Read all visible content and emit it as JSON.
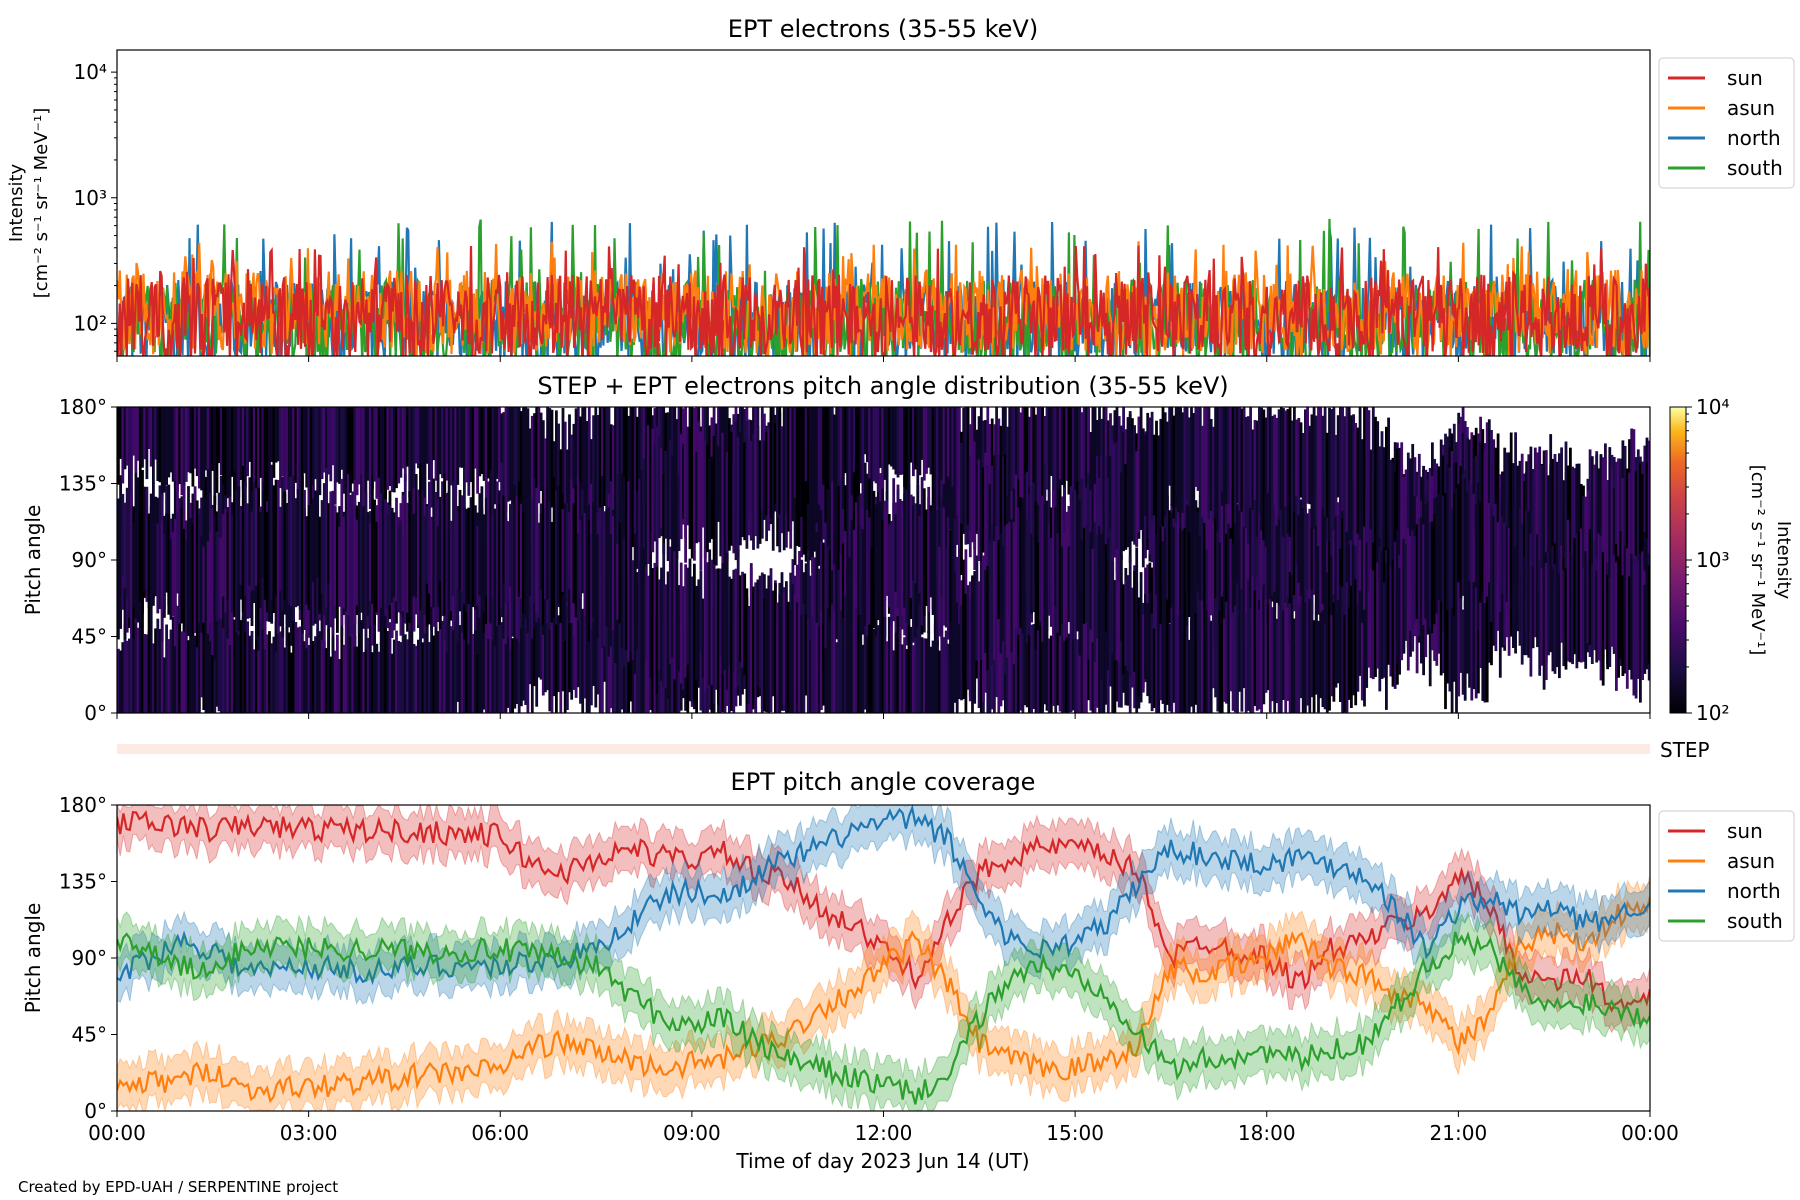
{
  "credit": "Created by EPD-UAH / SERPENTINE project",
  "colors": {
    "sun": "#d62728",
    "asun": "#ff7f0e",
    "north": "#1f77b4",
    "south": "#2ca02c"
  },
  "chart_data": [
    {
      "type": "line",
      "title": "EPT electrons (35-55 keV)",
      "ylabel_line1": "Intensity",
      "ylabel_line2": "[cm⁻² s⁻¹ sr⁻¹ MeV⁻¹]",
      "yscale": "log",
      "ylim": [
        55,
        15000
      ],
      "yticks": [
        "10²",
        "10³",
        "10⁴"
      ],
      "ytick_values": [
        100,
        1000,
        10000
      ],
      "xlim_hours": [
        0,
        24
      ],
      "legend": "upper-right outside",
      "series": [
        {
          "name": "sun",
          "color": "#d62728",
          "baseline": 110,
          "peak": 420
        },
        {
          "name": "asun",
          "color": "#ff7f0e",
          "baseline": 120,
          "peak": 450
        },
        {
          "name": "north",
          "color": "#1f77b4",
          "baseline": 100,
          "peak": 650
        },
        {
          "name": "south",
          "color": "#2ca02c",
          "baseline": 100,
          "peak": 680
        }
      ]
    },
    {
      "type": "heatmap",
      "title": "STEP + EPT electrons pitch angle distribution (35-55 keV)",
      "ylabel": "Pitch angle",
      "ylim": [
        0,
        180
      ],
      "yticks": [
        "0°",
        "45°",
        "90°",
        "135°",
        "180°"
      ],
      "colorbar": {
        "label_line1": "Intensity",
        "label_line2": "[cm⁻² s⁻¹ sr⁻¹ MeV⁻¹]",
        "scale": "log",
        "range": [
          100,
          10000
        ],
        "ticks": [
          "10²",
          "10³",
          "10⁴"
        ],
        "colormap": "inferno"
      },
      "step_label": "STEP",
      "xlim_hours": [
        0,
        24
      ]
    },
    {
      "type": "line",
      "title": "EPT pitch angle coverage",
      "ylabel": "Pitch angle",
      "ylim": [
        0,
        180
      ],
      "yticks": [
        "0°",
        "45°",
        "90°",
        "135°",
        "180°"
      ],
      "xlabel": "Time of day 2023 Jun 14 (UT)",
      "xticks": [
        "00:00",
        "03:00",
        "06:00",
        "09:00",
        "12:00",
        "15:00",
        "18:00",
        "21:00",
        "00:00"
      ],
      "xtick_hours": [
        0,
        3,
        6,
        9,
        12,
        15,
        18,
        21,
        24
      ],
      "legend": "upper-right outside",
      "series": [
        {
          "name": "sun",
          "color": "#d62728",
          "x": [
            0,
            1,
            1.5,
            2,
            3,
            4,
            5,
            6,
            6.5,
            7,
            7.5,
            8,
            8.5,
            9,
            9.5,
            10,
            10.5,
            11,
            11.5,
            12,
            12.5,
            13,
            13.5,
            14,
            14.5,
            15,
            15.5,
            16,
            16.5,
            17,
            17.5,
            18,
            18.5,
            19,
            19.5,
            20,
            20.5,
            21,
            21.5,
            22,
            22.5,
            23,
            23.5,
            24
          ],
          "y": [
            170,
            168,
            165,
            168,
            166,
            165,
            164,
            162,
            145,
            140,
            148,
            155,
            150,
            148,
            152,
            140,
            135,
            120,
            110,
            95,
            80,
            110,
            140,
            150,
            155,
            155,
            150,
            140,
            90,
            100,
            95,
            90,
            75,
            95,
            100,
            110,
            115,
            140,
            120,
            80,
            75,
            80,
            60,
            65
          ]
        },
        {
          "name": "asun",
          "color": "#ff7f0e",
          "x": [
            0,
            1,
            1.5,
            2,
            3,
            4,
            5,
            6,
            6.5,
            7,
            7.5,
            8,
            8.5,
            9,
            9.5,
            10,
            10.5,
            11,
            11.5,
            12,
            12.5,
            13,
            13.5,
            14,
            14.5,
            15,
            15.5,
            16,
            16.5,
            17,
            17.5,
            18,
            18.5,
            19,
            19.5,
            20,
            20.5,
            21,
            21.5,
            22,
            22.5,
            23,
            23.5,
            24
          ],
          "y": [
            15,
            18,
            25,
            12,
            14,
            18,
            22,
            25,
            38,
            40,
            35,
            30,
            25,
            28,
            30,
            38,
            45,
            60,
            70,
            85,
            100,
            75,
            40,
            30,
            25,
            25,
            30,
            40,
            85,
            80,
            85,
            90,
            105,
            85,
            80,
            70,
            65,
            40,
            55,
            100,
            105,
            100,
            115,
            120
          ]
        },
        {
          "name": "north",
          "color": "#1f77b4",
          "x": [
            0,
            1,
            1.5,
            2,
            3,
            4,
            5,
            6,
            6.5,
            7,
            7.5,
            8,
            8.5,
            9,
            9.5,
            10,
            10.5,
            11,
            11.5,
            12,
            12.5,
            13,
            13.5,
            14,
            14.5,
            15,
            15.5,
            16,
            16.5,
            17,
            17.5,
            18,
            18.5,
            19,
            19.5,
            20,
            20.5,
            21,
            21.5,
            22,
            22.5,
            23,
            23.5,
            24
          ],
          "y": [
            80,
            100,
            95,
            82,
            85,
            82,
            86,
            85,
            88,
            90,
            95,
            110,
            125,
            130,
            125,
            140,
            148,
            155,
            165,
            170,
            172,
            160,
            125,
            100,
            95,
            100,
            110,
            135,
            155,
            150,
            148,
            145,
            150,
            145,
            140,
            120,
            95,
            120,
            125,
            115,
            120,
            110,
            115,
            125
          ]
        },
        {
          "name": "south",
          "color": "#2ca02c",
          "x": [
            0,
            1,
            1.5,
            2,
            3,
            4,
            5,
            6,
            6.5,
            7,
            7.5,
            8,
            8.5,
            9,
            9.5,
            10,
            10.5,
            11,
            11.5,
            12,
            12.5,
            13,
            13.5,
            14,
            14.5,
            15,
            15.5,
            16,
            16.5,
            17,
            17.5,
            18,
            18.5,
            19,
            19.5,
            20,
            20.5,
            21,
            21.5,
            22,
            22.5,
            23,
            23.5,
            24
          ],
          "y": [
            100,
            85,
            80,
            98,
            96,
            95,
            94,
            95,
            92,
            90,
            85,
            70,
            55,
            50,
            55,
            40,
            30,
            25,
            20,
            15,
            10,
            20,
            55,
            80,
            85,
            80,
            70,
            45,
            25,
            30,
            32,
            35,
            30,
            35,
            40,
            60,
            85,
            100,
            95,
            70,
            60,
            65,
            60,
            55
          ]
        }
      ]
    }
  ]
}
